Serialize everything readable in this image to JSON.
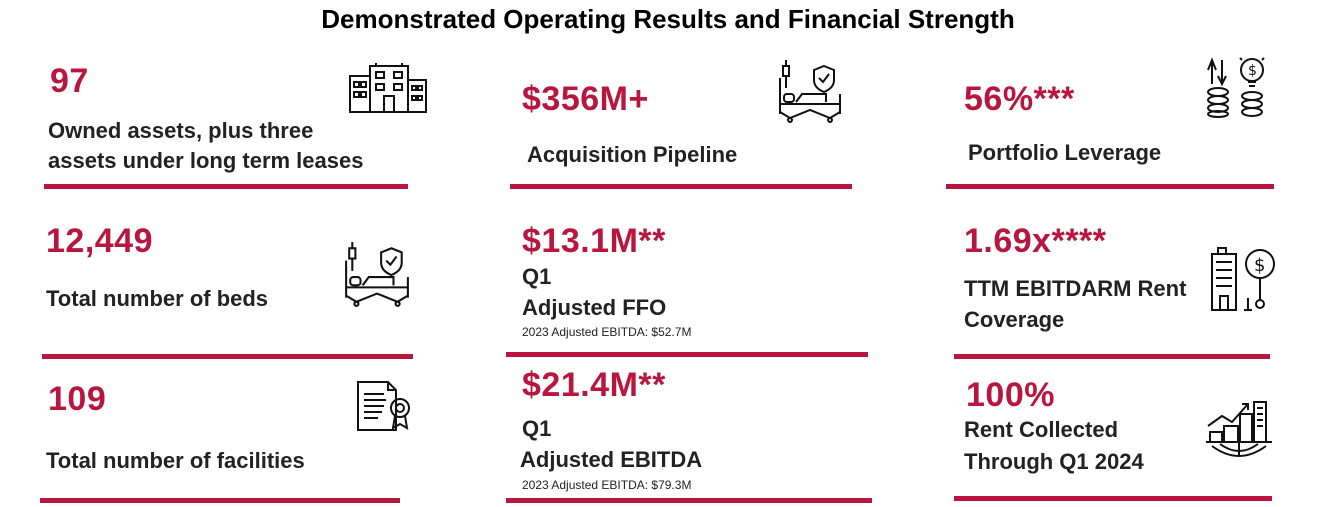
{
  "title": "Demonstrated Operating Results and Financial Strength",
  "accent_color": "#b8163f",
  "cards": {
    "owned": {
      "value": "97",
      "label_line1": "Owned assets, plus three",
      "label_line2": "assets under long term leases",
      "icon": "office-buildings-icon"
    },
    "pipeline": {
      "value": "$356M+",
      "label": "Acquisition Pipeline",
      "icon": "hospital-bed-shield-icon"
    },
    "leverage": {
      "value": "56%***",
      "label": "Portfolio Leverage",
      "icon": "coins-idea-icon"
    },
    "beds": {
      "value": "12,449",
      "label": "Total number of beds",
      "icon": "hospital-bed-shield-icon"
    },
    "ffo": {
      "value": "$13.1M**",
      "line1": "Q1",
      "line2": "Adjusted FFO",
      "note": "2023 Adjusted EBITDA: $52.7M"
    },
    "coverage": {
      "value": "1.69x****",
      "label_line1": "TTM EBITDARM Rent",
      "label_line2": "Coverage",
      "icon": "building-dollar-icon"
    },
    "facilities": {
      "value": "109",
      "label": "Total number of facilities",
      "icon": "certificate-icon"
    },
    "ebitda": {
      "value": "$21.4M**",
      "line1": "Q1",
      "line2": "Adjusted EBITDA",
      "note": "2023 Adjusted EBITDA: $79.3M"
    },
    "rent": {
      "value": "100%",
      "label_line1": "Rent Collected",
      "label_line2": "Through Q1 2024",
      "icon": "city-growth-icon"
    }
  }
}
